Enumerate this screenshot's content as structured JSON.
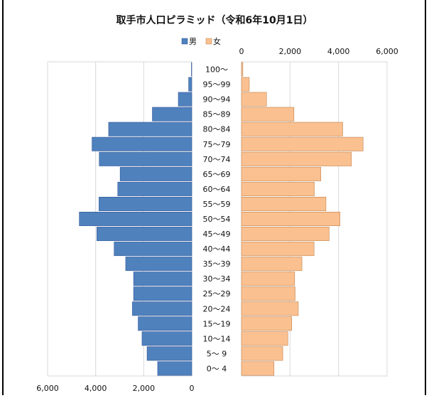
{
  "chart_data": {
    "type": "bar",
    "title": "取手市人口ピラミッド（令和6年10月1日）",
    "legend": [
      "男",
      "女"
    ],
    "legend_placement": "top",
    "categories": [
      "100～",
      "95～99",
      "90～94",
      "85～89",
      "80～84",
      "75～79",
      "70～74",
      "65～69",
      "60～64",
      "55～59",
      "50～54",
      "45～49",
      "40～44",
      "35～39",
      "30～34",
      "25～29",
      "20～24",
      "15～19",
      "10～14",
      "5～ 9",
      "0～ 4"
    ],
    "series": [
      {
        "name": "男",
        "color": "#4f81bd",
        "values": [
          15,
          130,
          560,
          1640,
          3460,
          4150,
          3850,
          2980,
          3080,
          3860,
          4680,
          3950,
          3230,
          2750,
          2420,
          2420,
          2470,
          2230,
          2070,
          1860,
          1420
        ]
      },
      {
        "name": "女",
        "color": "#fac090",
        "values": [
          55,
          320,
          1030,
          2160,
          4170,
          5010,
          4530,
          3270,
          3000,
          3480,
          4060,
          3610,
          2990,
          2490,
          2190,
          2210,
          2340,
          2070,
          1910,
          1700,
          1340
        ]
      }
    ],
    "x_left": {
      "ticks": [
        "6,000",
        "4,000",
        "2,000",
        "0"
      ],
      "range": [
        0,
        6000
      ]
    },
    "x_right": {
      "ticks": [
        "0",
        "2,000",
        "4,000",
        "6,000"
      ],
      "range": [
        0,
        6000
      ]
    },
    "grid": true
  }
}
